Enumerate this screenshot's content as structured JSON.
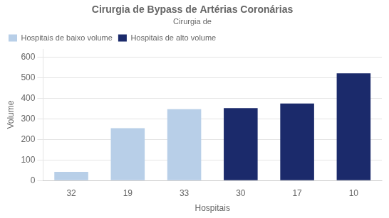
{
  "chart_data": {
    "type": "bar",
    "title": "Cirurgia de Bypass de Artérias Coronárias",
    "subtitle": "Cirurgia de",
    "xlabel": "Hospitais",
    "ylabel": "Volume",
    "categories": [
      "32",
      "19",
      "33",
      "30",
      "17",
      "10"
    ],
    "series": [
      {
        "name": "Hospitais de baixo volume",
        "color": "#b8cfe8",
        "values": [
          42,
          255,
          347,
          null,
          null,
          null
        ]
      },
      {
        "name": "Hospitais de alto volume",
        "color": "#1b2a6b",
        "values": [
          null,
          null,
          null,
          352,
          375,
          522
        ]
      }
    ],
    "ylim": [
      0,
      640
    ],
    "yticks": [
      0,
      100,
      200,
      300,
      400,
      500,
      600
    ],
    "grid": true,
    "legend": "upper left"
  }
}
